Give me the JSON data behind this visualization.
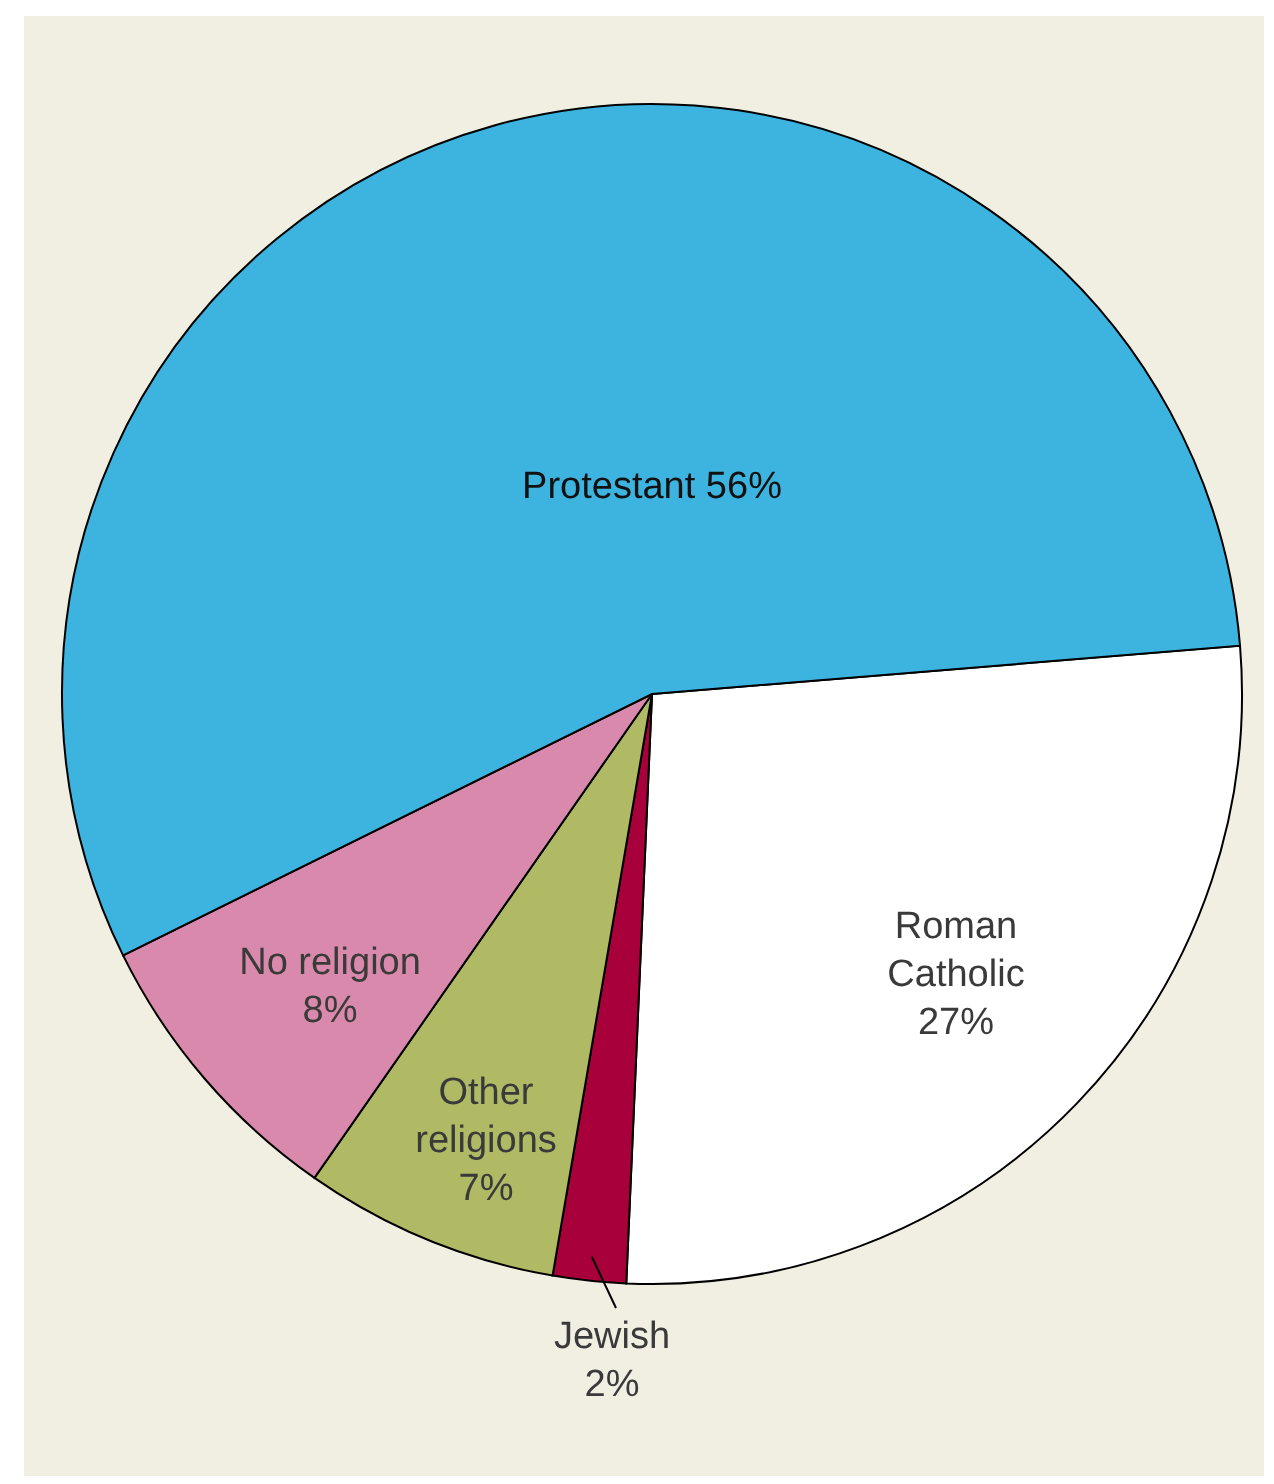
{
  "chart_data": {
    "type": "pie",
    "categories": [
      "Roman Catholic",
      "Jewish",
      "Other religions",
      "No religion",
      "Protestant"
    ],
    "values": [
      27,
      2,
      7,
      8,
      56
    ],
    "value_labels": [
      "27%",
      "2%",
      "7%",
      "8%",
      "56%"
    ],
    "colors": [
      "#ffffff",
      "#a8003b",
      "#b0b964",
      "#d98aac",
      "#3db4e0"
    ]
  }
}
